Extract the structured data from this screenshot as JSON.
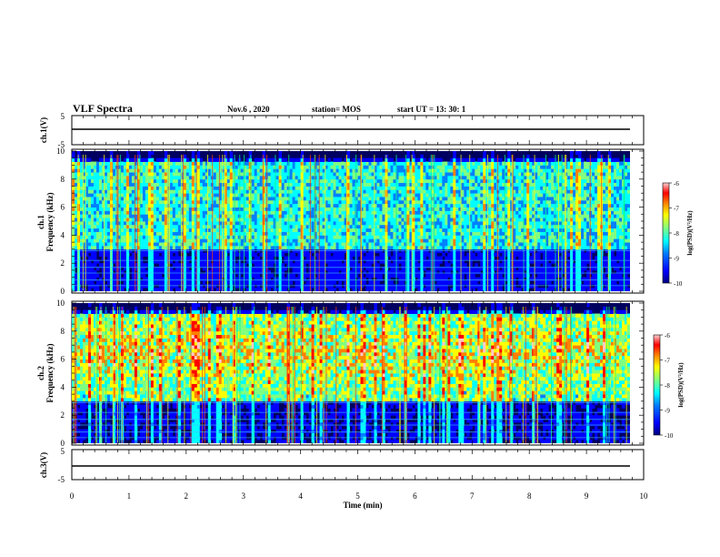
{
  "header": {
    "title": "VLF Spectra",
    "date": "Nov.6  , 2020",
    "station": "station= MOS",
    "start_ut": "start  UT  =   13: 30: 1"
  },
  "colors": {
    "colormap": [
      "#00007f",
      "#0000ff",
      "#0080ff",
      "#00ffff",
      "#80ff80",
      "#ffff00",
      "#ff8000",
      "#ff0000",
      "#ffc8c8"
    ],
    "background_low": "#000060",
    "trace": "#000000"
  },
  "chart_data": [
    {
      "type": "line",
      "panel": "ch1-voltage",
      "ylabel": "ch.1(V)",
      "ylim": [
        -5,
        5
      ],
      "yticks": [
        "5",
        "-5"
      ],
      "x": [
        0,
        10
      ],
      "values": [
        0,
        0
      ]
    },
    {
      "type": "heatmap",
      "panel": "ch1-spectrogram",
      "ylabel": "ch.1\nFrequency  (kHz)",
      "ylabel_lines": [
        "ch.1",
        "Frequency  (kHz)"
      ],
      "ylim": [
        0,
        10
      ],
      "yticks": [
        "0",
        "2",
        "4",
        "6",
        "8",
        "10"
      ],
      "xlim": [
        0,
        10
      ],
      "colorbar": {
        "label": "log(PSD)(V²/Hz)",
        "ticks": [
          "-6",
          "-7",
          "-8",
          "-9",
          "-10"
        ],
        "range": [
          -10,
          -6
        ]
      }
    },
    {
      "type": "heatmap",
      "panel": "ch2-spectrogram",
      "ylabel": "ch.2\nFrequency  (kHz)",
      "ylabel_lines": [
        "ch.2",
        "Frequency  (kHz)"
      ],
      "ylim": [
        0,
        10
      ],
      "yticks": [
        "0",
        "2",
        "4",
        "6",
        "8",
        "10"
      ],
      "xlim": [
        0,
        10
      ],
      "colorbar": {
        "label": "log(PSD)(V²/Hz)",
        "ticks": [
          "-6",
          "-7",
          "-8",
          "-9",
          "-10"
        ],
        "range": [
          -10,
          -6
        ]
      }
    },
    {
      "type": "line",
      "panel": "ch3-voltage",
      "ylabel": "ch.3(V)",
      "ylim": [
        -5,
        5
      ],
      "yticks": [
        "5",
        "-5"
      ],
      "x": [
        0,
        10
      ],
      "values": [
        0,
        0
      ]
    }
  ],
  "xaxis": {
    "label": "Time  (min)",
    "ticks": [
      "0",
      "1",
      "2",
      "3",
      "4",
      "5",
      "6",
      "7",
      "8",
      "9",
      "10"
    ],
    "range": [
      0,
      10
    ]
  }
}
